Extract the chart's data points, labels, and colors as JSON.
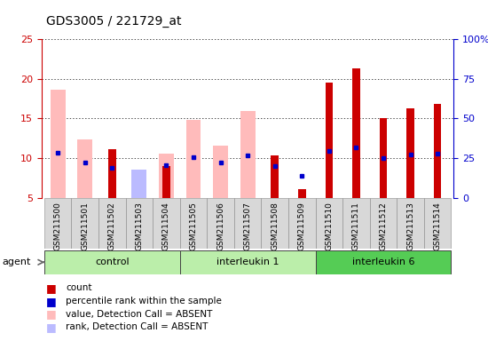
{
  "title": "GDS3005 / 221729_at",
  "samples": [
    "GSM211500",
    "GSM211501",
    "GSM211502",
    "GSM211503",
    "GSM211504",
    "GSM211505",
    "GSM211506",
    "GSM211507",
    "GSM211508",
    "GSM211509",
    "GSM211510",
    "GSM211511",
    "GSM211512",
    "GSM211513",
    "GSM211514"
  ],
  "groups": [
    {
      "label": "control",
      "color": "#bbeeaa",
      "start": 0,
      "end": 5
    },
    {
      "label": "interleukin 1",
      "color": "#bbeeaa",
      "start": 5,
      "end": 10
    },
    {
      "label": "interleukin 6",
      "color": "#55cc55",
      "start": 10,
      "end": 15
    }
  ],
  "value_absent": [
    18.6,
    12.4,
    null,
    7.6,
    10.6,
    14.8,
    11.6,
    16.0,
    null,
    null,
    null,
    null,
    null,
    null,
    null
  ],
  "rank_absent": [
    null,
    null,
    null,
    8.5,
    null,
    null,
    null,
    null,
    null,
    null,
    null,
    null,
    null,
    null,
    null
  ],
  "count_red": [
    null,
    null,
    11.1,
    null,
    9.0,
    null,
    null,
    null,
    10.3,
    6.1,
    19.5,
    21.3,
    15.0,
    16.3,
    16.8
  ],
  "percentile": [
    10.7,
    9.4,
    8.8,
    null,
    9.1,
    10.1,
    9.4,
    10.4,
    9.0,
    7.8,
    10.9,
    11.4,
    10.0,
    10.5,
    10.6
  ],
  "ylim_left": [
    5,
    25
  ],
  "ylim_right": [
    0,
    100
  ],
  "yticks_left": [
    5,
    10,
    15,
    20,
    25
  ],
  "yticks_right": [
    0,
    25,
    50,
    75,
    100
  ],
  "ytick_labels_right": [
    "0",
    "25",
    "50",
    "75",
    "100%"
  ],
  "left_color": "#cc0000",
  "right_color": "#0000cc",
  "pink_color": "#ffbbbb",
  "lblue_color": "#bbbbff",
  "red_color": "#cc0000",
  "blue_color": "#0000cc"
}
